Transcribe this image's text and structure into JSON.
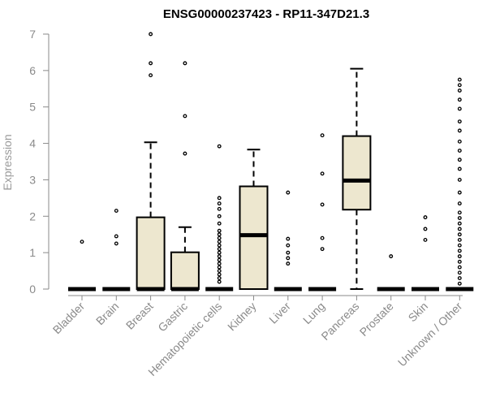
{
  "chart_data": {
    "type": "boxplot",
    "title": "ENSG00000237423 - RP11-347D21.3",
    "xlabel": "",
    "ylabel": "Expression",
    "ylim": [
      0,
      7
    ],
    "yticks": [
      0,
      1,
      2,
      3,
      4,
      5,
      6,
      7
    ],
    "grid": false,
    "colors": {
      "box_fill": "#ede7cf",
      "stroke": "#000000",
      "axis": "#8a8a8a"
    },
    "categories": [
      "Bladder",
      "Brain",
      "Breast",
      "Gastric",
      "Hematopoietic cells",
      "Kidney",
      "Liver",
      "Lung",
      "Pancreas",
      "Prostate",
      "Skin",
      "Unknown / Other"
    ],
    "boxes": [
      {
        "q1": 0,
        "median": 0,
        "q3": 0,
        "whisker_low": 0,
        "whisker_high": 0,
        "outliers": [
          1.3
        ]
      },
      {
        "q1": 0,
        "median": 0,
        "q3": 0,
        "whisker_low": 0,
        "whisker_high": 0,
        "outliers": [
          1.25,
          1.45,
          2.15
        ]
      },
      {
        "q1": 0,
        "median": 0,
        "q3": 1.97,
        "whisker_low": 0,
        "whisker_high": 4.03,
        "outliers": [
          5.87,
          6.2,
          7.0
        ]
      },
      {
        "q1": 0,
        "median": 0,
        "q3": 1.01,
        "whisker_low": 0,
        "whisker_high": 1.7,
        "outliers": [
          3.72,
          4.75,
          6.2
        ]
      },
      {
        "q1": 0,
        "median": 0,
        "q3": 0,
        "whisker_low": 0,
        "whisker_high": 0,
        "outliers": [
          0.2,
          0.3,
          0.4,
          0.5,
          0.6,
          0.7,
          0.8,
          0.9,
          1.0,
          1.1,
          1.2,
          1.3,
          1.4,
          1.5,
          1.6,
          1.8,
          2.0,
          2.2,
          2.35,
          2.5,
          3.92
        ]
      },
      {
        "q1": 0,
        "median": 1.48,
        "q3": 2.82,
        "whisker_low": 0,
        "whisker_high": 3.83,
        "outliers": []
      },
      {
        "q1": 0,
        "median": 0,
        "q3": 0,
        "whisker_low": 0,
        "whisker_high": 0,
        "outliers": [
          0.7,
          0.85,
          1.0,
          1.2,
          1.38,
          2.65
        ]
      },
      {
        "q1": 0,
        "median": 0,
        "q3": 0,
        "whisker_low": 0,
        "whisker_high": 0,
        "outliers": [
          1.1,
          1.4,
          2.32,
          3.17,
          4.22
        ]
      },
      {
        "q1": 2.18,
        "median": 2.98,
        "q3": 4.2,
        "whisker_low": 0,
        "whisker_high": 6.05,
        "outliers": []
      },
      {
        "q1": 0,
        "median": 0,
        "q3": 0,
        "whisker_low": 0,
        "whisker_high": 0,
        "outliers": [
          0.9
        ]
      },
      {
        "q1": 0,
        "median": 0,
        "q3": 0,
        "whisker_low": 0,
        "whisker_high": 0,
        "outliers": [
          1.35,
          1.65,
          1.97
        ]
      },
      {
        "q1": 0,
        "median": 0,
        "q3": 0,
        "whisker_low": 0,
        "whisker_high": 0,
        "outliers": [
          0.15,
          0.3,
          0.45,
          0.6,
          0.75,
          0.9,
          1.05,
          1.2,
          1.35,
          1.5,
          1.65,
          1.8,
          1.95,
          2.1,
          2.35,
          2.65,
          3.0,
          3.3,
          3.55,
          3.8,
          4.05,
          4.35,
          4.6,
          4.95,
          5.2,
          5.45,
          5.6,
          5.75
        ]
      }
    ]
  }
}
